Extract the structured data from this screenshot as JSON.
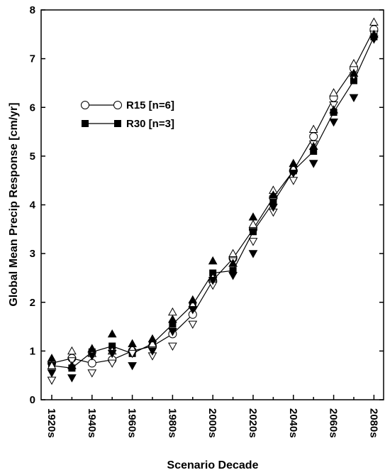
{
  "chart_data": {
    "type": "line",
    "x_label": "Scenario Decade",
    "y_label": "Global Mean Precip Response [cm/yr]",
    "categories": [
      "1920s",
      null,
      "1940s",
      null,
      "1960s",
      null,
      "1980s",
      null,
      "2000s",
      null,
      "2020s",
      null,
      "2040s",
      null,
      "2060s",
      null,
      "2080s"
    ],
    "ylim": [
      0,
      8
    ],
    "yticks": [
      0,
      1,
      2,
      3,
      4,
      5,
      6,
      7,
      8
    ],
    "series": [
      {
        "name": "R15  [n=6]",
        "color": "#000000",
        "marker": "open-circle",
        "line": true,
        "values": [
          0.75,
          0.85,
          0.75,
          0.82,
          1.0,
          1.1,
          1.35,
          1.75,
          2.45,
          2.9,
          3.5,
          4.15,
          4.7,
          5.4,
          6.2,
          6.8,
          7.6
        ]
      },
      {
        "name": "R30  [n=3]",
        "color": "#000000",
        "marker": "filled-square",
        "line": true,
        "values": [
          0.7,
          0.65,
          0.98,
          1.1,
          0.95,
          1.15,
          1.55,
          1.95,
          2.6,
          2.65,
          3.45,
          4.05,
          4.7,
          5.1,
          5.9,
          6.55,
          7.45
        ]
      },
      {
        "color": "#000000",
        "marker": "open-up",
        "line": false,
        "values": [
          0.7,
          1.0,
          0.95,
          1.0,
          1.05,
          1.15,
          1.8,
          1.95,
          2.5,
          3.0,
          3.6,
          4.3,
          4.75,
          5.55,
          6.3,
          6.9,
          7.75
        ]
      },
      {
        "color": "#000000",
        "marker": "open-down",
        "line": false,
        "values": [
          0.4,
          0.8,
          0.55,
          0.75,
          0.95,
          0.9,
          1.1,
          1.55,
          2.35,
          2.85,
          3.25,
          3.85,
          4.5,
          5.25,
          6.05,
          6.65,
          7.5
        ]
      },
      {
        "color": "#000000",
        "marker": "filled-up",
        "line": false,
        "values": [
          0.85,
          0.7,
          1.05,
          1.35,
          1.15,
          1.25,
          1.65,
          2.05,
          2.85,
          2.8,
          3.75,
          4.2,
          4.85,
          5.2,
          5.95,
          6.7,
          7.5
        ]
      },
      {
        "color": "#000000",
        "marker": "filled-down",
        "line": false,
        "values": [
          0.55,
          0.45,
          0.9,
          0.95,
          0.7,
          1.0,
          1.4,
          1.85,
          2.45,
          2.55,
          3.0,
          3.95,
          4.65,
          4.85,
          5.7,
          6.2,
          7.4
        ]
      }
    ]
  }
}
